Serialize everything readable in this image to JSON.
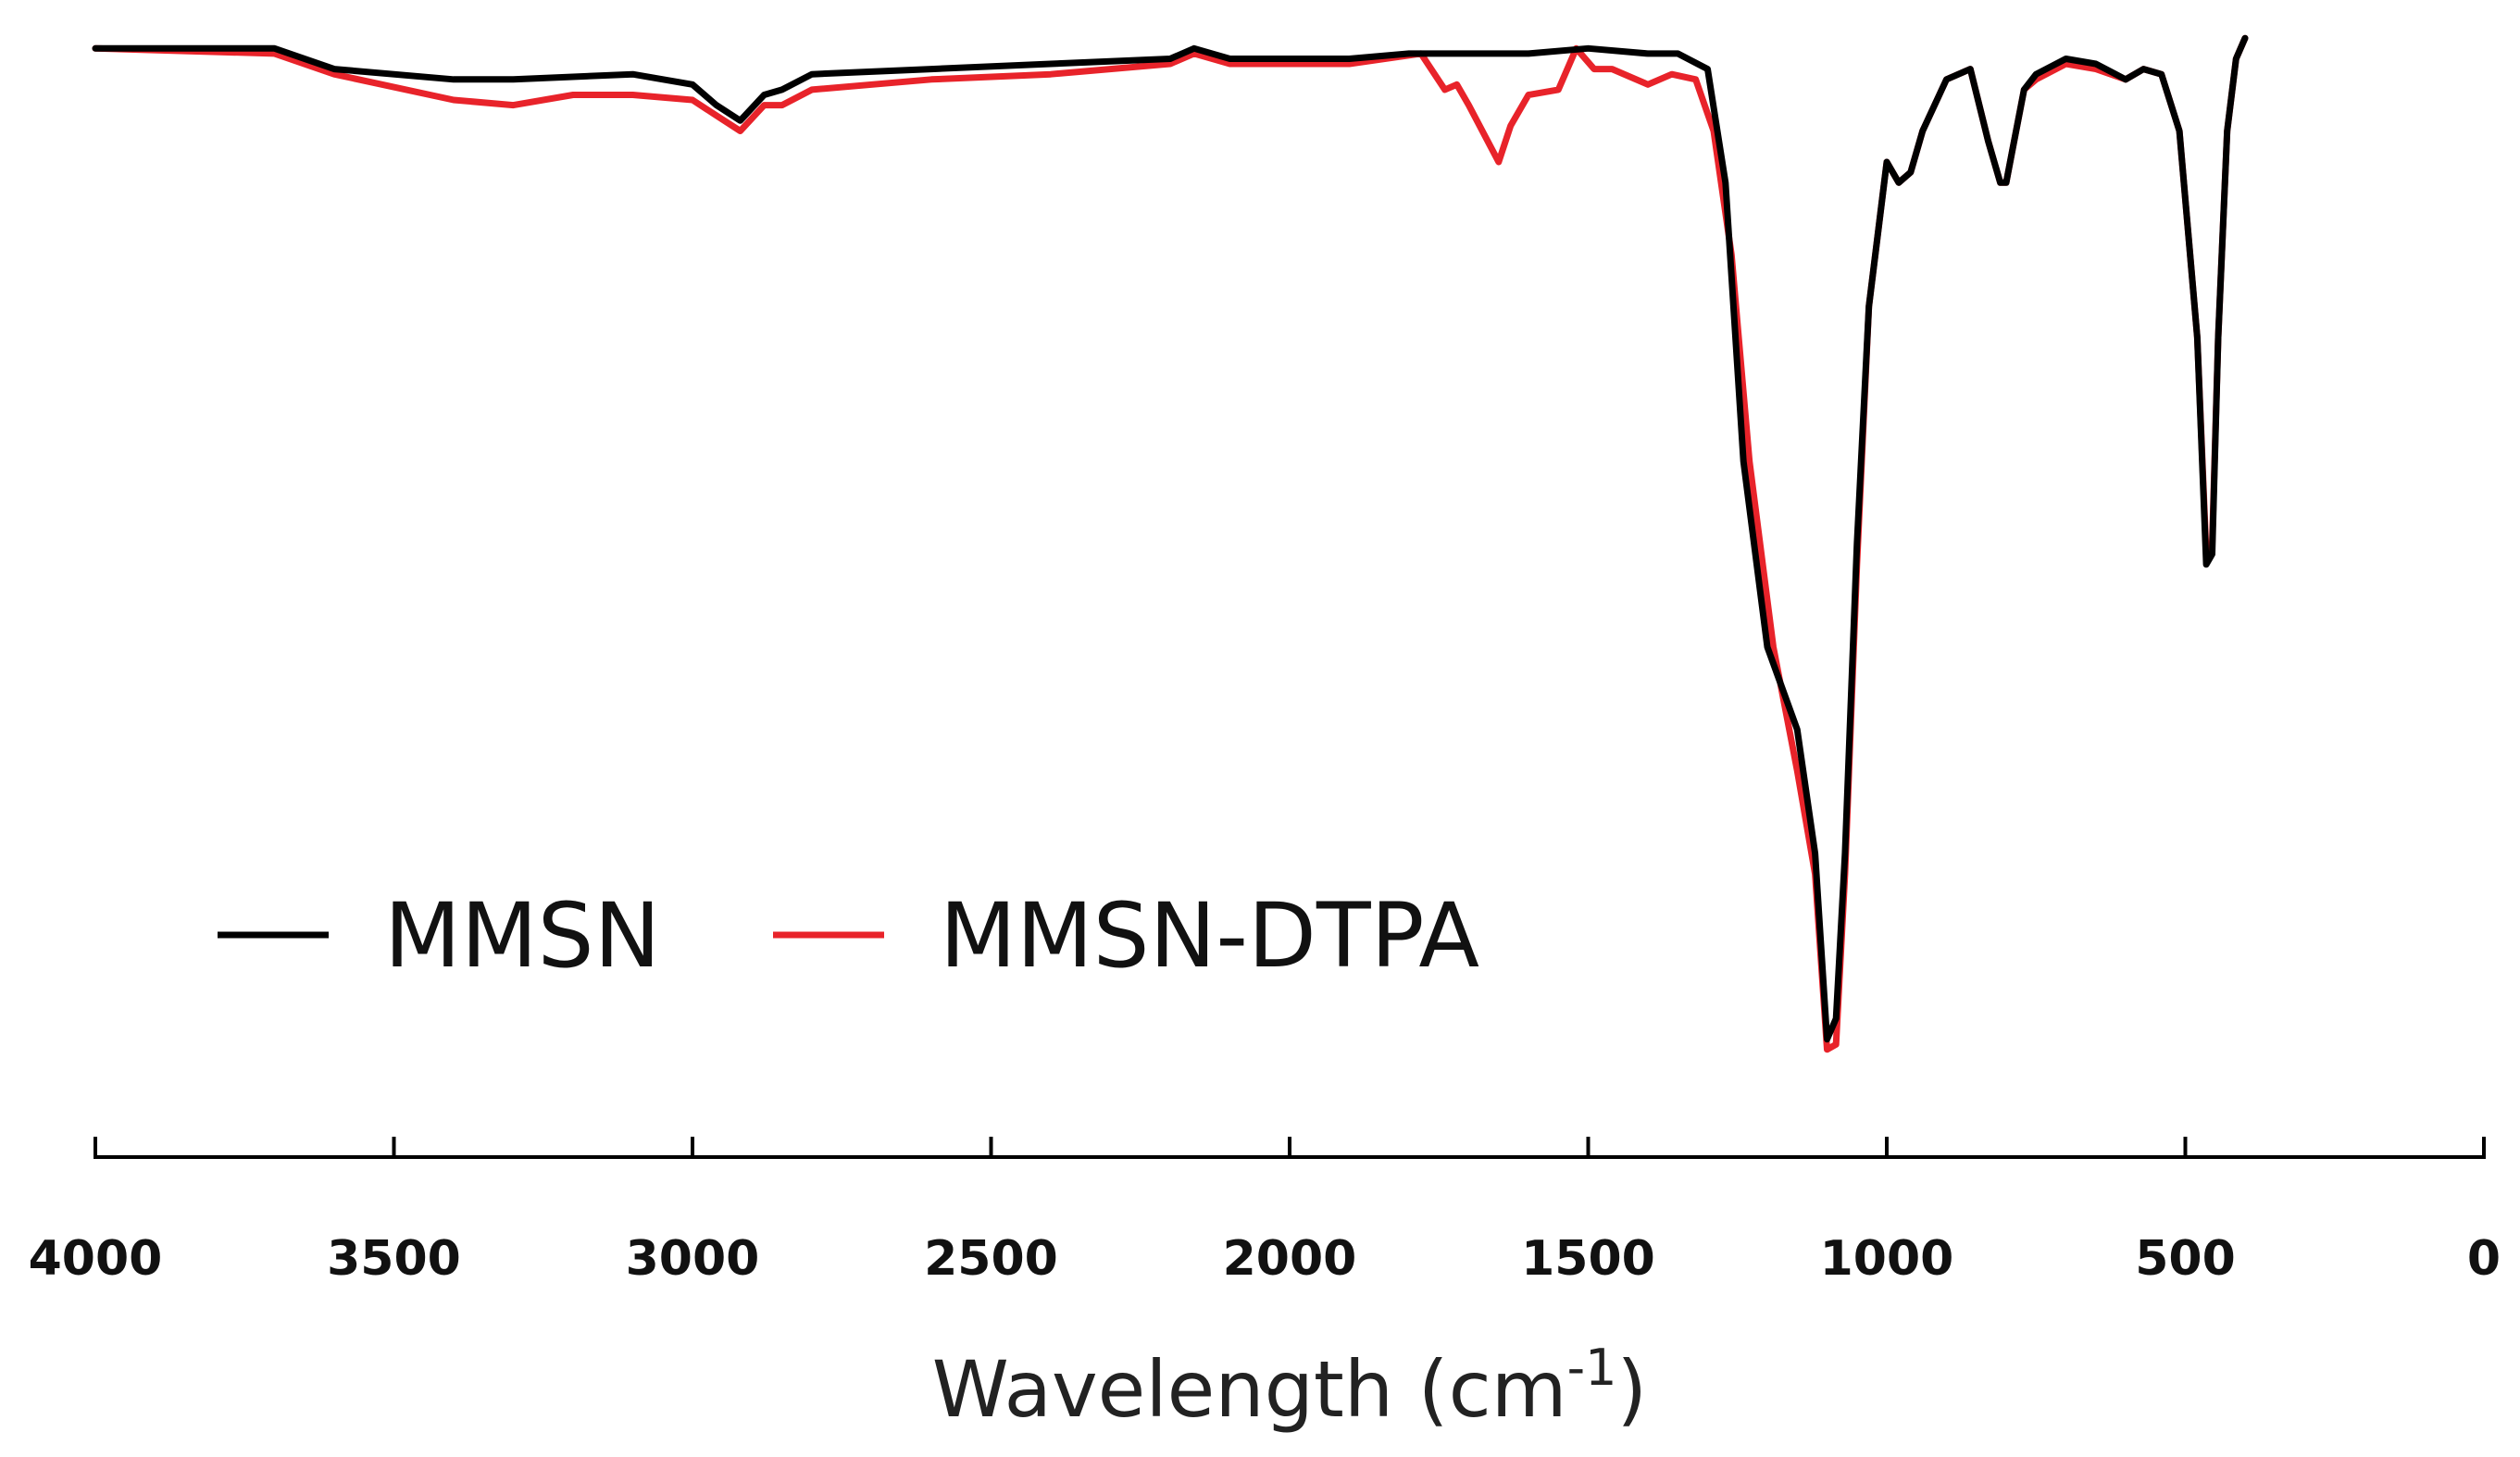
{
  "chart_data": {
    "type": "line",
    "title": "",
    "xlabel": "Wavelength (cm",
    "xlabel_sup": "-1",
    "xlabel_close": ")",
    "ylabel": "",
    "xlim": [
      4000,
      0
    ],
    "ylim": [
      0,
      100
    ],
    "x_reversed": true,
    "grid": false,
    "legend_position": "bottom-left",
    "xticks": [
      4000,
      3500,
      3000,
      2500,
      2000,
      1500,
      1000,
      500,
      0
    ],
    "xtick_labels": [
      "4000",
      "3500",
      "3000",
      "2500",
      "2000",
      "1500",
      "1000",
      "500",
      "0"
    ],
    "series": [
      {
        "name": "MMSN",
        "color": "#000000",
        "x": [
          4000,
          3700,
          3600,
          3400,
          3300,
          3100,
          3000,
          2960,
          2920,
          2880,
          2850,
          2800,
          2600,
          2400,
          2200,
          2160,
          2100,
          1900,
          1800,
          1600,
          1500,
          1400,
          1350,
          1300,
          1270,
          1240,
          1200,
          1150,
          1120,
          1100,
          1085,
          1070,
          1050,
          1030,
          1000,
          980,
          960,
          940,
          900,
          860,
          830,
          810,
          800,
          790,
          770,
          750,
          700,
          650,
          600,
          570,
          540,
          510,
          480,
          465,
          455,
          445,
          430,
          415,
          400
        ],
        "y": [
          98,
          98,
          96,
          95,
          95,
          95.5,
          94.5,
          92.5,
          91,
          93.5,
          94,
          95.5,
          96,
          96.5,
          97,
          98,
          97,
          97,
          97.5,
          97.5,
          98,
          97.5,
          97.5,
          96,
          85,
          58,
          40,
          32,
          20,
          2,
          4,
          20,
          50,
          73,
          87,
          85,
          86,
          90,
          95,
          96,
          89,
          85,
          85,
          88,
          94,
          95.5,
          97,
          96.5,
          95,
          96,
          95.5,
          90,
          70,
          48,
          49,
          70,
          90,
          97,
          99
        ]
      },
      {
        "name": "MMSN-DTPA",
        "color": "#e8232a",
        "x": [
          4000,
          3700,
          3600,
          3400,
          3300,
          3200,
          3100,
          3000,
          2960,
          2920,
          2880,
          2850,
          2800,
          2600,
          2400,
          2200,
          2160,
          2100,
          1900,
          1780,
          1740,
          1720,
          1700,
          1650,
          1630,
          1600,
          1550,
          1520,
          1490,
          1460,
          1400,
          1360,
          1320,
          1290,
          1260,
          1230,
          1190,
          1150,
          1120,
          1100,
          1085,
          1070,
          1050,
          1030,
          1000,
          980,
          960,
          940,
          900,
          860,
          830,
          810,
          800,
          790,
          770,
          750,
          700,
          650,
          600,
          570,
          540,
          510,
          480,
          465,
          455,
          445,
          430,
          415,
          400
        ],
        "y": [
          98,
          97.5,
          95.5,
          93,
          92.5,
          93.5,
          93.5,
          93,
          91.5,
          90,
          92.5,
          92.5,
          94,
          95,
          95.5,
          96.5,
          97.5,
          96.5,
          96.5,
          97.5,
          94,
          94.5,
          92.5,
          87,
          90.5,
          93.5,
          94,
          98,
          96,
          96,
          94.5,
          95.5,
          95,
          90,
          78,
          58,
          40,
          28,
          18,
          1,
          1.5,
          18,
          48,
          73,
          87,
          85,
          86,
          90,
          95,
          96,
          89,
          85,
          85,
          88,
          94,
          95,
          96.5,
          96,
          95,
          96,
          95.5,
          90,
          70,
          49,
          50,
          70,
          90,
          97,
          99
        ]
      }
    ]
  }
}
